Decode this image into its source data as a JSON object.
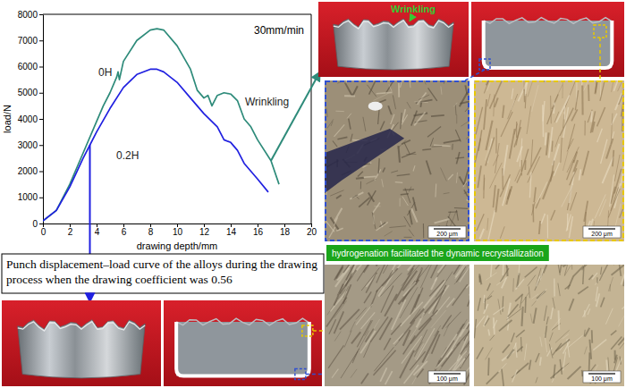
{
  "chart_data": {
    "type": "line",
    "xlabel": "drawing depth/mm",
    "ylabel": "load/N",
    "xlim": [
      0,
      20
    ],
    "ylim": [
      0,
      8000
    ],
    "xticks": [
      0,
      2,
      4,
      6,
      8,
      10,
      12,
      14,
      16,
      18,
      20
    ],
    "yticks": [
      0,
      1000,
      2000,
      3000,
      4000,
      5000,
      6000,
      7000,
      8000
    ],
    "grid": false,
    "annotations": [
      "30mm/min",
      "Wrinkling"
    ],
    "series": [
      {
        "name": "0H",
        "color": "#2e8b7a",
        "x": [
          0,
          1,
          2,
          3,
          4,
          4.5,
          5,
          5.5,
          5.6,
          5.7,
          6,
          7,
          8,
          8.5,
          9,
          10,
          11,
          11.5,
          12,
          12.3,
          12.6,
          13,
          13.5,
          14,
          14.5,
          15,
          15.5,
          16,
          17,
          17.6
        ],
        "values": [
          100,
          500,
          1500,
          2700,
          3900,
          4500,
          5000,
          5600,
          5800,
          5500,
          6200,
          7000,
          7400,
          7450,
          7400,
          6800,
          5900,
          5100,
          4800,
          4900,
          4500,
          4900,
          5000,
          4950,
          4700,
          4000,
          3700,
          3200,
          2400,
          1500
        ]
      },
      {
        "name": "0.2H",
        "color": "#2020e0",
        "x": [
          0,
          1,
          2,
          3,
          3.5,
          4,
          5,
          6,
          7,
          8,
          8.5,
          9,
          10,
          11,
          12,
          13,
          13.5,
          14,
          14.5,
          15,
          16,
          16.8
        ],
        "values": [
          100,
          500,
          1400,
          2500,
          3000,
          3500,
          4400,
          5200,
          5700,
          5900,
          5900,
          5800,
          5400,
          4800,
          4200,
          3700,
          3200,
          3100,
          2800,
          2300,
          1700,
          1200
        ]
      }
    ]
  },
  "figure": {
    "caption": "Punch displacement–load curve of the alloys during the drawing process when the drawing coefficient was 0.56",
    "banner": "hydrogenation facilitated the dynamic recrystallization",
    "photo_label": "Wrinkling",
    "scale_bars": [
      "200 μm",
      "200 μm",
      "100 μm",
      "100 μm"
    ]
  }
}
